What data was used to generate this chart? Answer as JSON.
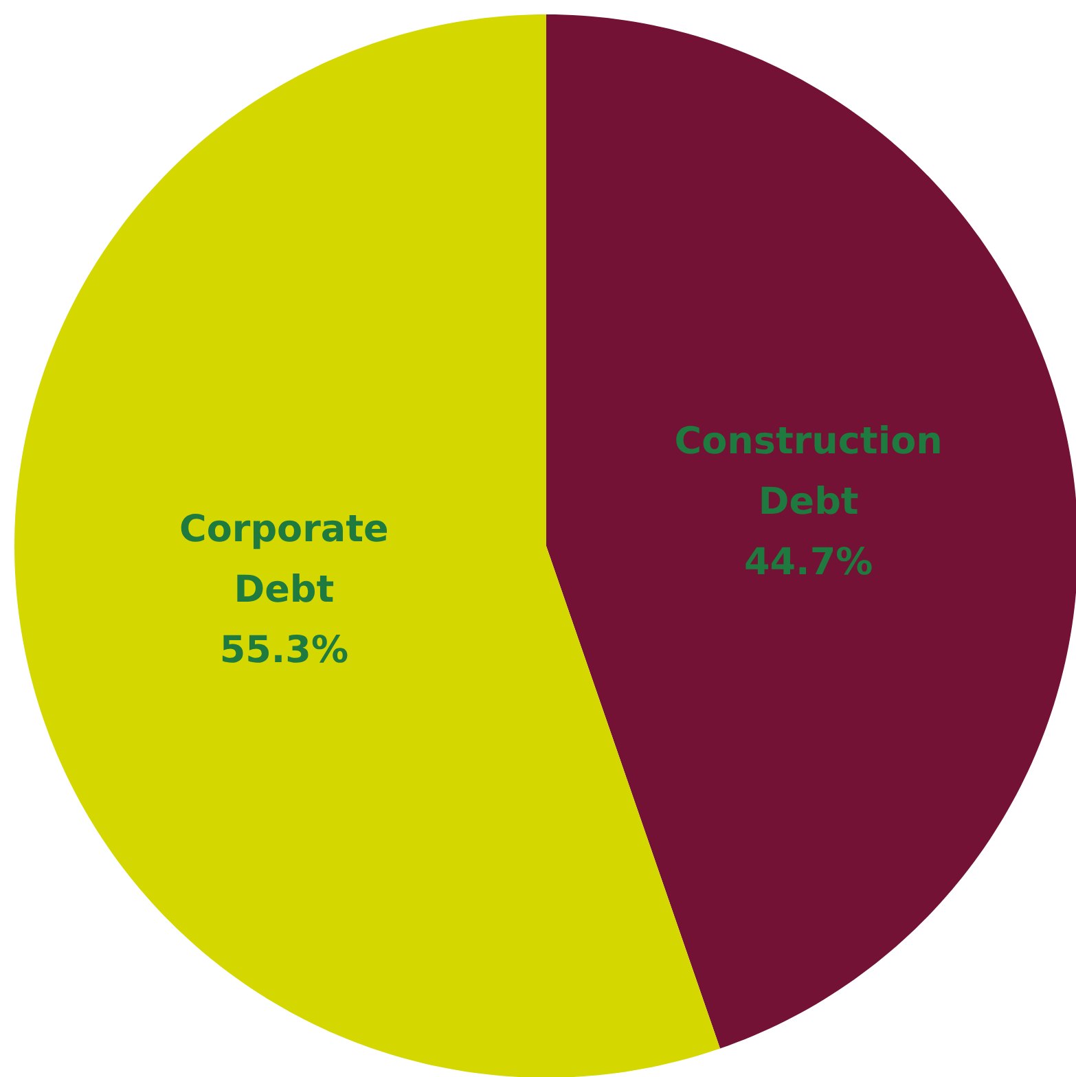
{
  "chart_data": {
    "type": "pie",
    "categories": [
      "Construction Debt",
      "Corporate Debt"
    ],
    "values": [
      44.7,
      55.3
    ],
    "colors": [
      "#731235",
      "#d4d800"
    ],
    "value_labels": [
      "44.7%",
      "55.3%"
    ]
  }
}
